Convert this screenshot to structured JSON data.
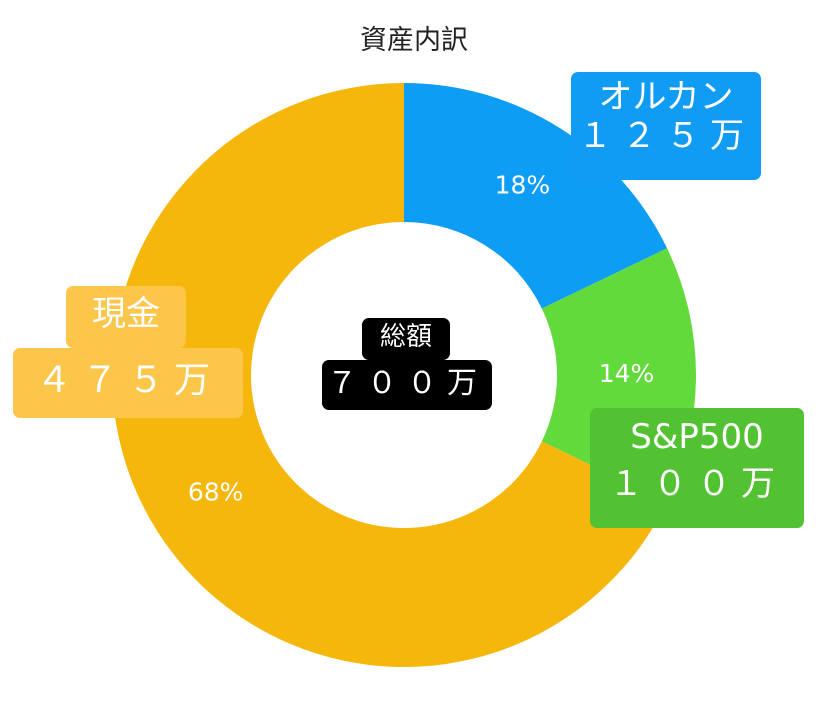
{
  "chart_data": {
    "type": "pie",
    "title": "資産内訳",
    "center_label": {
      "line1": "総額",
      "line2": "７００万"
    },
    "slices": [
      {
        "label": "オルカン",
        "amount": "１２５万",
        "value": 125,
        "percent_label": "18%",
        "color": "#0d9df5"
      },
      {
        "label": "S&P500",
        "amount": "１００万",
        "value": 100,
        "percent_label": "14%",
        "color": "#63da3b"
      },
      {
        "label": "現金",
        "amount": "４７５万",
        "value": 475,
        "percent_label": "68%",
        "color": "#f5b70c"
      }
    ]
  }
}
